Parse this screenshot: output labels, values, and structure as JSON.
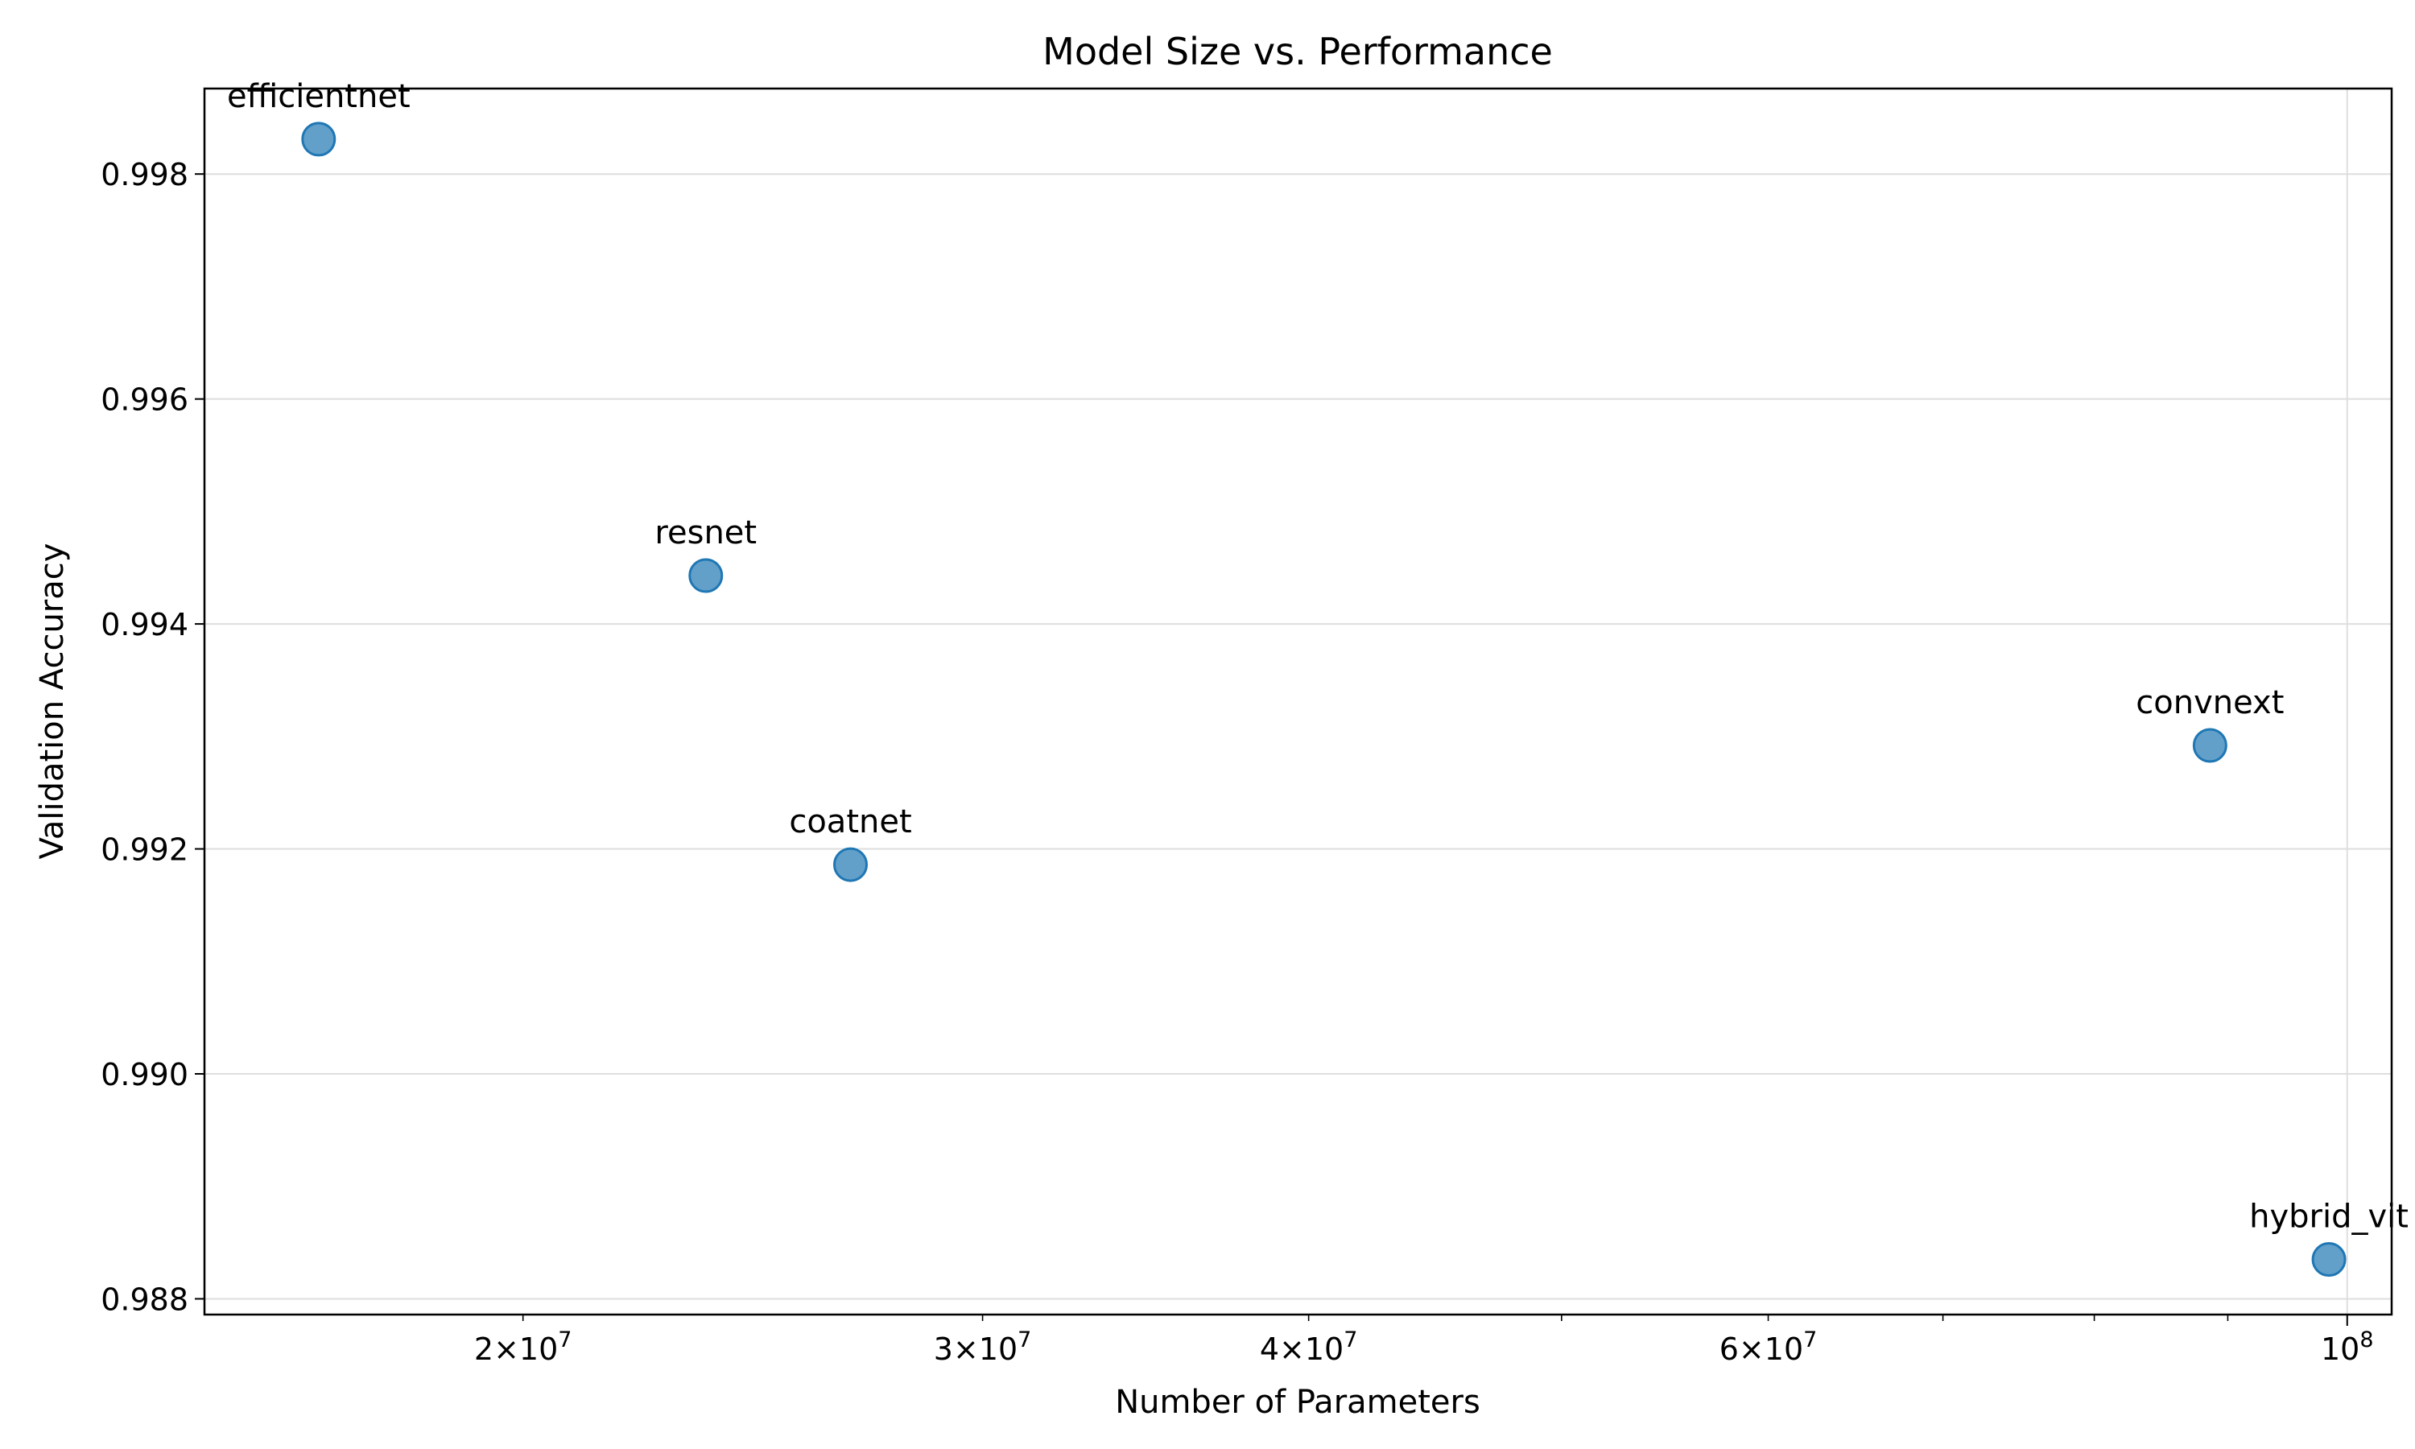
{
  "chart_data": {
    "type": "scatter",
    "title": "Model Size vs. Performance",
    "xlabel": "Number of Parameters",
    "ylabel": "Validation Accuracy",
    "x_scale": "log",
    "xlim": [
      15100000,
      104000000
    ],
    "ylim": [
      0.98786,
      0.99876
    ],
    "grid": true,
    "point_color": "#1f77b4",
    "points": [
      {
        "label": "efficientnet",
        "x": 16700000,
        "y": 0.99831
      },
      {
        "label": "resnet",
        "x": 23500000,
        "y": 0.99443
      },
      {
        "label": "coatnet",
        "x": 26700000,
        "y": 0.99186
      },
      {
        "label": "convnext",
        "x": 88600000,
        "y": 0.99292
      },
      {
        "label": "hybrid_vit",
        "x": 98400000,
        "y": 0.98835
      }
    ],
    "y_ticks": [
      {
        "value": 0.988,
        "label": "0.988"
      },
      {
        "value": 0.99,
        "label": "0.990"
      },
      {
        "value": 0.992,
        "label": "0.992"
      },
      {
        "value": 0.994,
        "label": "0.994"
      },
      {
        "value": 0.996,
        "label": "0.996"
      },
      {
        "value": 0.998,
        "label": "0.998"
      }
    ],
    "x_major_ticks": [
      {
        "value": 100000000,
        "mantissa": "",
        "exponent": "8"
      }
    ],
    "x_minor_ticks": [
      {
        "value": 20000000,
        "mantissa": "2",
        "exponent": "7"
      },
      {
        "value": 30000000,
        "mantissa": "3",
        "exponent": "7"
      },
      {
        "value": 40000000,
        "mantissa": "4",
        "exponent": "7"
      },
      {
        "value": 50000000,
        "mantissa": "",
        "exponent": ""
      },
      {
        "value": 60000000,
        "mantissa": "6",
        "exponent": "7"
      },
      {
        "value": 70000000,
        "mantissa": "",
        "exponent": ""
      },
      {
        "value": 80000000,
        "mantissa": "",
        "exponent": ""
      },
      {
        "value": 90000000,
        "mantissa": "",
        "exponent": ""
      }
    ]
  }
}
